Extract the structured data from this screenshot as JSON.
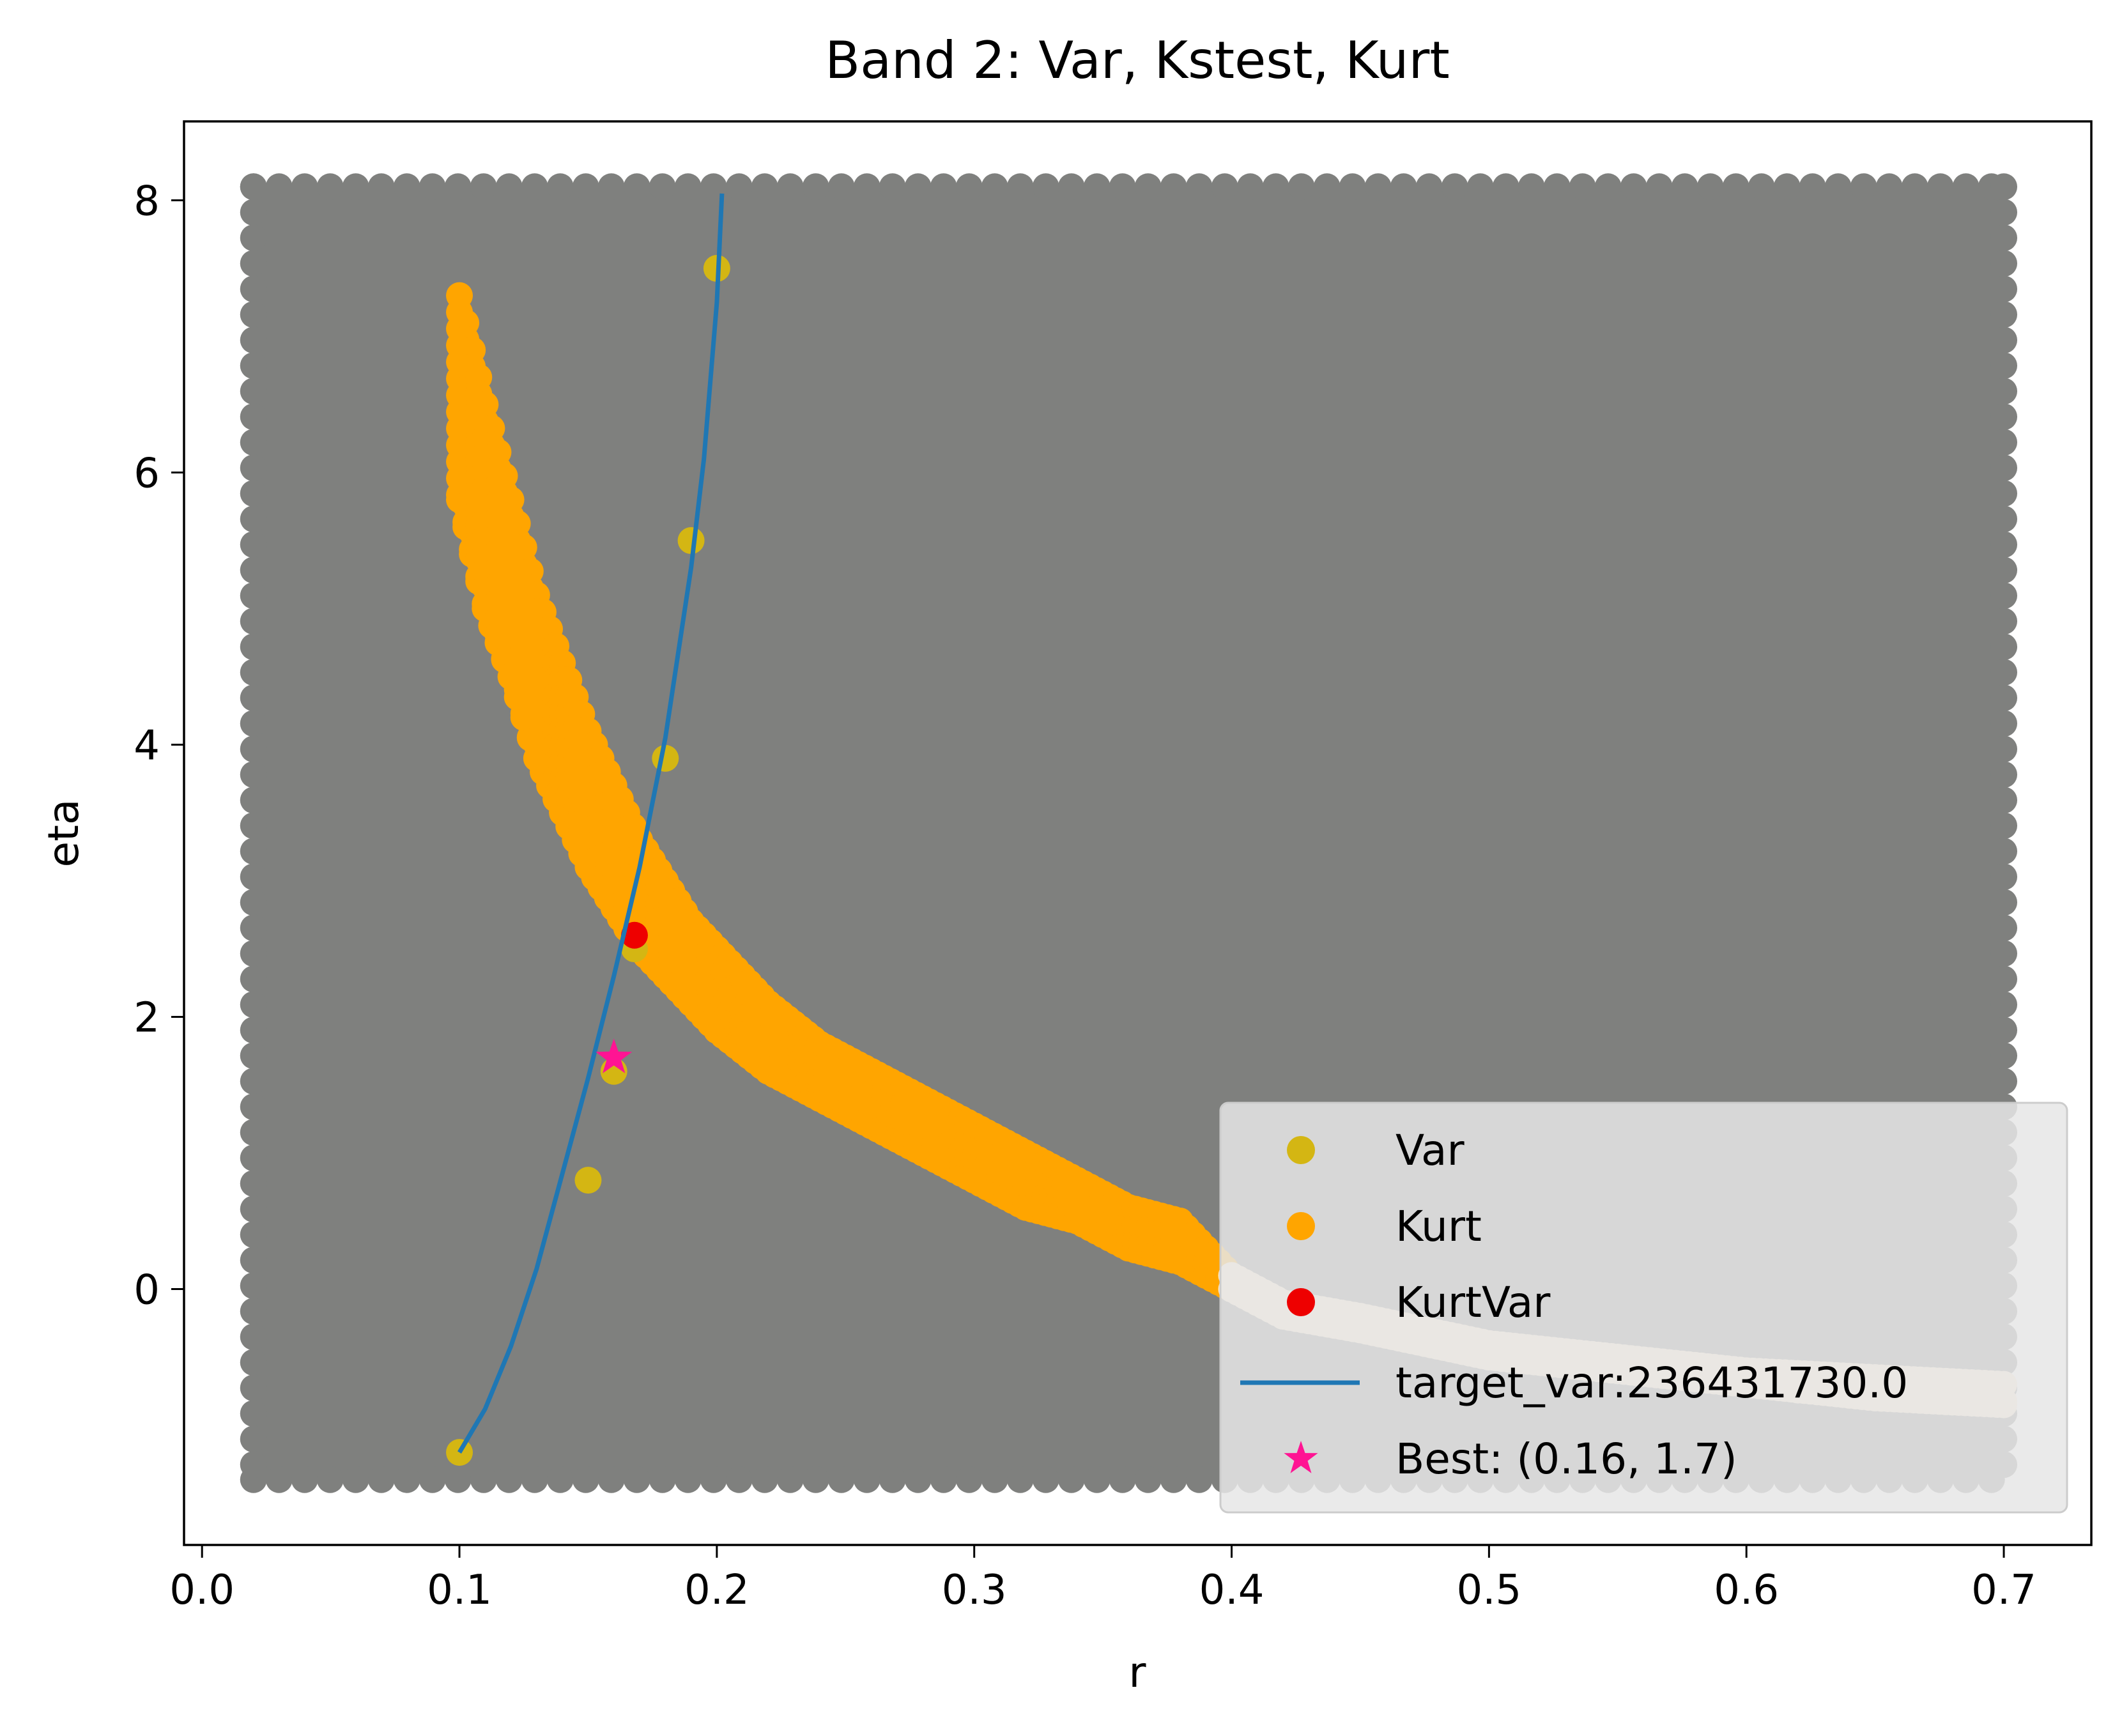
{
  "chart_data": {
    "type": "scatter",
    "title": "Band 2: Var, Kstest, Kurt",
    "xlabel": "r",
    "ylabel": "eta",
    "xlim": [
      -0.007,
      0.734
    ],
    "ylim": [
      -1.88,
      8.58
    ],
    "xticks": [
      0.0,
      0.1,
      0.2,
      0.3,
      0.4,
      0.5,
      0.6,
      0.7
    ],
    "xtick_labels": [
      "0.0",
      "0.1",
      "0.2",
      "0.3",
      "0.4",
      "0.5",
      "0.6",
      "0.7"
    ],
    "yticks": [
      0,
      2,
      4,
      6,
      8
    ],
    "ytick_labels": [
      "0",
      "2",
      "4",
      "6",
      "8"
    ],
    "grid": false,
    "legend_position": "lower right",
    "background_grid": {
      "color": "#7f807e",
      "r_range": [
        0.02,
        0.7
      ],
      "eta_range": [
        -1.4,
        8.1
      ]
    },
    "kurt_band": {
      "r": [
        0.1,
        0.11,
        0.12,
        0.13,
        0.14,
        0.15,
        0.16,
        0.17,
        0.18,
        0.19,
        0.2,
        0.22,
        0.24,
        0.26,
        0.28,
        0.3,
        0.32,
        0.34,
        0.36,
        0.38,
        0.4,
        0.42,
        0.45,
        0.5,
        0.55,
        0.6,
        0.65,
        0.7
      ],
      "eta_low": [
        5.8,
        5.0,
        4.5,
        3.9,
        3.5,
        3.1,
        2.8,
        2.5,
        2.3,
        2.1,
        1.9,
        1.6,
        1.4,
        1.2,
        1.0,
        0.8,
        0.6,
        0.5,
        0.3,
        0.2,
        0.0,
        -0.2,
        -0.3,
        -0.5,
        -0.6,
        -0.7,
        -0.8,
        -0.85
      ],
      "eta_high": [
        7.3,
        6.5,
        5.8,
        5.1,
        4.6,
        4.1,
        3.7,
        3.3,
        3.0,
        2.7,
        2.5,
        2.1,
        1.8,
        1.6,
        1.4,
        1.2,
        1.0,
        0.8,
        0.6,
        0.5,
        0.1,
        -0.1,
        -0.2,
        -0.4,
        -0.5,
        -0.6,
        -0.65,
        -0.7
      ],
      "pale_from_r": 0.4
    },
    "var_points": {
      "r": [
        0.1,
        0.15,
        0.16,
        0.168,
        0.18,
        0.19,
        0.2
      ],
      "eta": [
        -1.2,
        0.8,
        1.6,
        2.5,
        3.9,
        5.5,
        7.5
      ]
    },
    "kurtvar_points": {
      "r": [
        0.168
      ],
      "eta": [
        2.6
      ]
    },
    "target_curve": {
      "r": [
        0.1,
        0.11,
        0.12,
        0.13,
        0.14,
        0.15,
        0.16,
        0.17,
        0.18,
        0.19,
        0.195,
        0.2,
        0.202
      ],
      "eta": [
        -1.2,
        -0.88,
        -0.42,
        0.15,
        0.85,
        1.55,
        2.3,
        3.1,
        4.05,
        5.3,
        6.1,
        7.25,
        8.05
      ]
    },
    "best": {
      "r": 0.16,
      "eta": 1.7
    },
    "series": [
      {
        "name": "Var",
        "color": "#d4b613",
        "marker": "circle"
      },
      {
        "name": "Kurt",
        "color": "#ffa500",
        "marker": "circle"
      },
      {
        "name": "KurtVar",
        "color": "#ee0000",
        "marker": "circle"
      },
      {
        "name": "target_var:236431730.0",
        "color": "#1f77b4",
        "marker": "line"
      },
      {
        "name": "Best: (0.16, 1.7)",
        "color": "#ff1493",
        "marker": "star"
      }
    ]
  }
}
